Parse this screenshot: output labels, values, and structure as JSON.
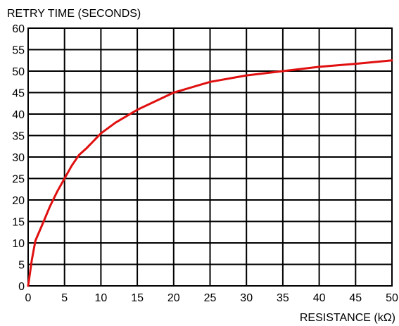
{
  "chart_data": {
    "type": "line",
    "title": "",
    "ylabel": "RETRY TIME (SECONDS)",
    "xlabel": "RESISTANCE (kΩ)",
    "xlim": [
      0,
      50
    ],
    "ylim": [
      0,
      60
    ],
    "xticks": [
      "0",
      "5",
      "10",
      "15",
      "20",
      "25",
      "30",
      "35",
      "40",
      "45",
      "50"
    ],
    "yticks": [
      "0",
      "5",
      "10",
      "15",
      "20",
      "25",
      "30",
      "35",
      "40",
      "45",
      "50",
      "55",
      "60"
    ],
    "grid": true,
    "line_color": "#e01010",
    "series": [
      {
        "x": [
          0,
          0.5,
          1,
          2,
          3,
          4,
          5,
          6,
          7,
          8,
          10,
          12,
          15,
          20,
          25,
          30,
          35,
          40,
          45,
          50
        ],
        "y": [
          0,
          6,
          10.5,
          14.5,
          18.5,
          22,
          25,
          28,
          30.5,
          32,
          35.5,
          38,
          41,
          45,
          47.5,
          49,
          50,
          51,
          51.7,
          52.5
        ]
      }
    ]
  }
}
